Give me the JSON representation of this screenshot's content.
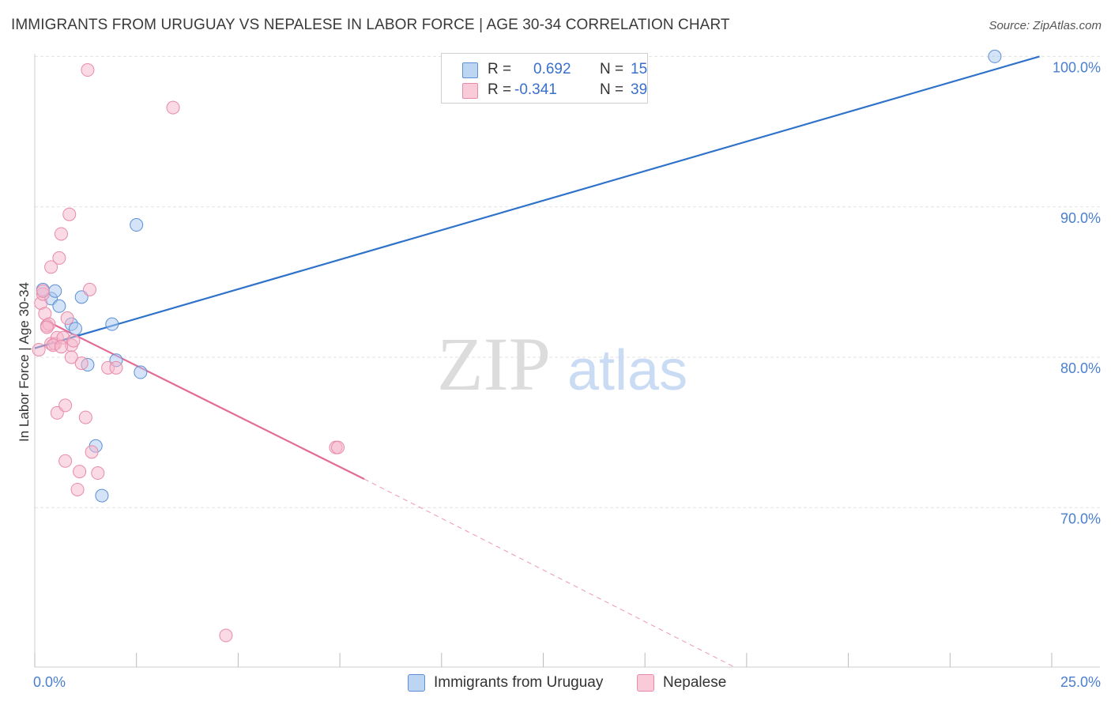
{
  "title": "IMMIGRANTS FROM URUGUAY VS NEPALESE IN LABOR FORCE | AGE 30-34 CORRELATION CHART",
  "source": "Source: ZipAtlas.com",
  "watermark": {
    "zip": "ZIP",
    "atlas": "atlas"
  },
  "colors": {
    "blue_fill": "#a9c8f0",
    "blue_stroke": "#5b8fd6",
    "blue_line": "#2f72c9",
    "pink_fill": "#f6b8cb",
    "pink_stroke": "#e88aa8",
    "pink_line": "#e46a96",
    "tick_text": "#4a7fd0",
    "grid": "#e2e2e2"
  },
  "legend": {
    "rows": [
      {
        "r_label": "R =",
        "r_value": "0.692",
        "n_label": "N =",
        "n_value": "15",
        "series": "blue"
      },
      {
        "r_label": "R =",
        "r_value": "-0.341",
        "n_label": "N =",
        "n_value": "39",
        "series": "pink"
      }
    ]
  },
  "bottom_legend": [
    {
      "label": "Immigrants from Uruguay",
      "series": "blue"
    },
    {
      "label": "Nepalese",
      "series": "pink"
    }
  ],
  "chart_data": {
    "type": "scatter",
    "title": "IMMIGRANTS FROM URUGUAY VS NEPALESE IN LABOR FORCE | AGE 30-34 CORRELATION CHART",
    "xlabel": "",
    "ylabel": "In Labor Force | Age 30-34",
    "xlim": [
      0,
      25
    ],
    "ylim": [
      60.3,
      101.5
    ],
    "x_tick_labels": [
      {
        "value": 0,
        "label": "0.0%"
      },
      {
        "value": 25,
        "label": "25.0%"
      }
    ],
    "y_tick_labels": [
      {
        "value": 100,
        "label": "100.0%"
      },
      {
        "value": 90,
        "label": "90.0%"
      },
      {
        "value": 80,
        "label": "80.0%"
      },
      {
        "value": 70,
        "label": "70.0%"
      }
    ],
    "y_gridlines": [
      100.9,
      90.9,
      80.9,
      70.9
    ],
    "x_minor_ticks": [
      0,
      2.5,
      5,
      7.5,
      10,
      12.5,
      15,
      17.5,
      20,
      22.5,
      25
    ],
    "series": [
      {
        "name": "Immigrants from Uruguay",
        "color": "blue",
        "r": 0.692,
        "n": 15,
        "points": [
          [
            0.2,
            85.4
          ],
          [
            0.4,
            84.8
          ],
          [
            0.5,
            85.3
          ],
          [
            0.6,
            84.3
          ],
          [
            0.9,
            83.1
          ],
          [
            1.0,
            82.8
          ],
          [
            1.15,
            84.9
          ],
          [
            1.3,
            80.4
          ],
          [
            1.5,
            75.0
          ],
          [
            1.65,
            71.7
          ],
          [
            1.9,
            83.1
          ],
          [
            2.0,
            80.7
          ],
          [
            2.5,
            89.7
          ],
          [
            2.6,
            79.9
          ],
          [
            23.6,
            100.9
          ]
        ],
        "trend": {
          "x": [
            0,
            24.7
          ],
          "y": [
            81.5,
            100.9
          ],
          "dashed_to": null
        }
      },
      {
        "name": "Nepalese",
        "color": "pink",
        "r": -0.341,
        "n": 39,
        "points": [
          [
            0.1,
            81.4
          ],
          [
            0.15,
            84.5
          ],
          [
            0.2,
            85.1
          ],
          [
            0.25,
            83.8
          ],
          [
            0.3,
            83.0
          ],
          [
            0.35,
            83.1
          ],
          [
            0.4,
            86.9
          ],
          [
            0.4,
            81.8
          ],
          [
            0.5,
            81.8
          ],
          [
            0.55,
            82.2
          ],
          [
            0.55,
            77.2
          ],
          [
            0.6,
            87.5
          ],
          [
            0.65,
            89.1
          ],
          [
            0.7,
            82.2
          ],
          [
            0.75,
            77.7
          ],
          [
            0.75,
            74.0
          ],
          [
            0.8,
            83.5
          ],
          [
            0.85,
            90.4
          ],
          [
            0.9,
            81.7
          ],
          [
            0.9,
            80.9
          ],
          [
            0.95,
            82.0
          ],
          [
            1.05,
            72.1
          ],
          [
            1.1,
            73.3
          ],
          [
            1.15,
            80.5
          ],
          [
            1.25,
            76.9
          ],
          [
            1.3,
            100.0
          ],
          [
            1.35,
            85.4
          ],
          [
            1.4,
            74.6
          ],
          [
            1.55,
            73.2
          ],
          [
            1.8,
            80.2
          ],
          [
            2.0,
            80.2
          ],
          [
            3.4,
            97.5
          ],
          [
            4.7,
            62.4
          ],
          [
            7.4,
            74.9
          ],
          [
            7.45,
            74.9
          ],
          [
            0.2,
            85.3
          ],
          [
            0.3,
            82.9
          ],
          [
            0.45,
            81.7
          ],
          [
            0.65,
            81.6
          ]
        ],
        "trend": {
          "x": [
            0.3,
            8.1
          ],
          "y": [
            83.3,
            72.8
          ],
          "dashed_to": [
            17.2,
            60.3
          ]
        }
      }
    ]
  }
}
